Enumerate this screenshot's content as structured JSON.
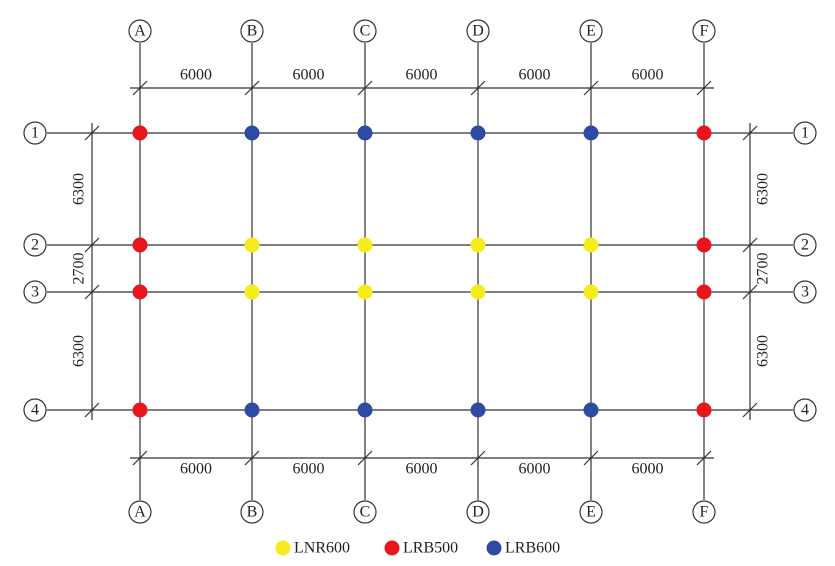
{
  "columns": {
    "top": [
      "A",
      "B",
      "C",
      "D",
      "E",
      "F"
    ],
    "bottom": [
      "A",
      "B",
      "C",
      "D",
      "E",
      "F"
    ]
  },
  "rows": {
    "left": [
      "1",
      "2",
      "3",
      "4"
    ],
    "right": [
      "1",
      "2",
      "3",
      "4"
    ]
  },
  "dimensions": {
    "top": [
      6000,
      6000,
      6000,
      6000,
      6000
    ],
    "bottom": [
      6000,
      6000,
      6000,
      6000,
      6000
    ],
    "left": [
      6300,
      2700,
      6300
    ],
    "right": [
      6300,
      2700,
      6300
    ]
  },
  "legend": [
    "LNR600",
    "LRB500",
    "LRB600"
  ]
}
